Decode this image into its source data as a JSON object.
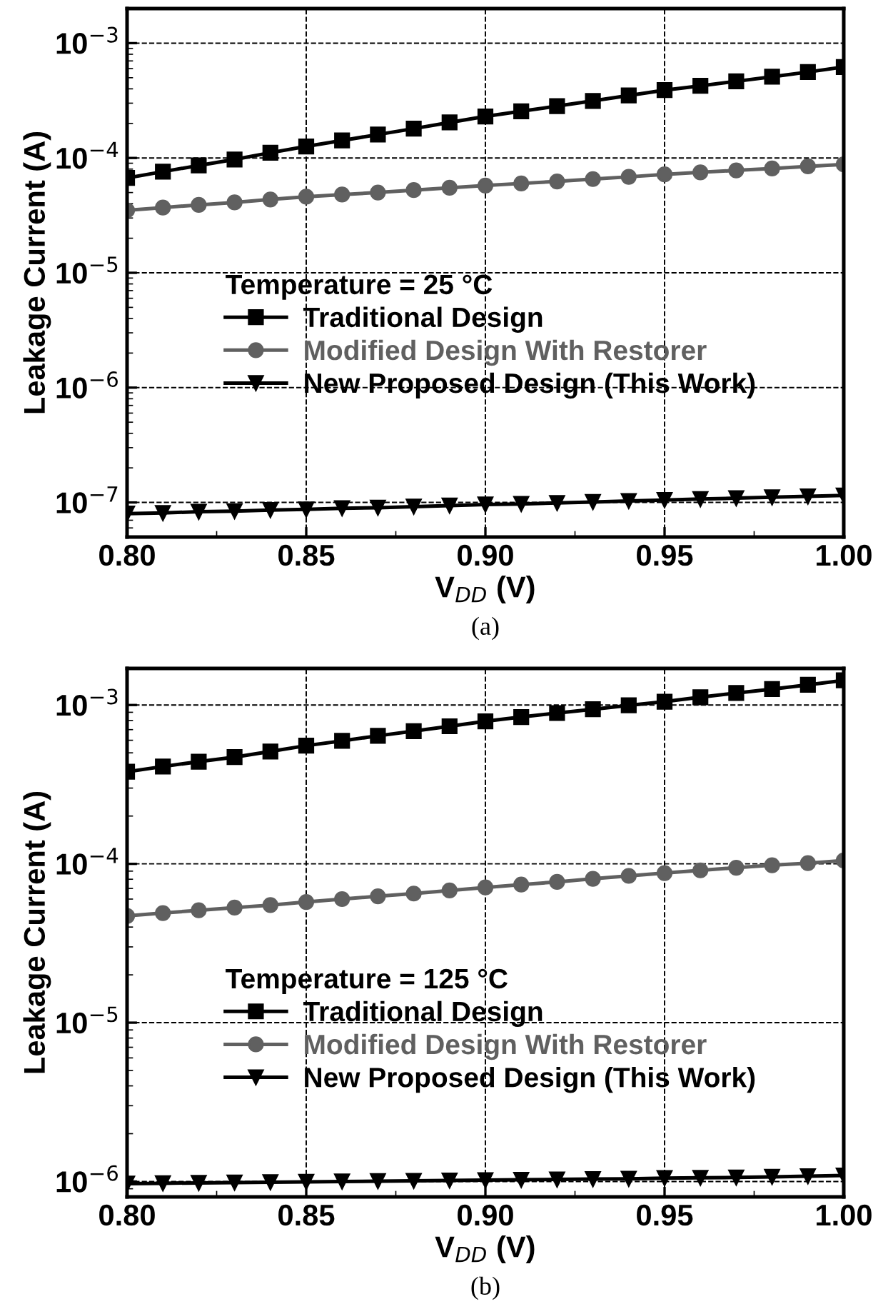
{
  "chart_data": [
    {
      "type": "line",
      "xlabel": "V$_{DD}$ (V)",
      "ylabel": "Leakage Current (A)",
      "legend_title": "Temperature = 25 °C",
      "annotations": [
        "(a)"
      ],
      "x": [
        0.8,
        0.81,
        0.82,
        0.83,
        0.84,
        0.85,
        0.86,
        0.87,
        0.88,
        0.89,
        0.9,
        0.91,
        0.92,
        0.93,
        0.94,
        0.95,
        0.96,
        0.97,
        0.98,
        0.99,
        1.0
      ],
      "series": [
        {
          "name": "Traditional Design",
          "color": "#000000",
          "marker": "square",
          "values": [
            6.7e-05,
            7.6e-05,
            8.6e-05,
            9.7e-05,
            0.000111,
            0.000126,
            0.000142,
            0.00016,
            0.00018,
            0.000204,
            0.00023,
            0.000255,
            0.000283,
            0.000314,
            0.00035,
            0.00039,
            0.000425,
            0.000465,
            0.00051,
            0.00056,
            0.00062
          ]
        },
        {
          "name": "Modified Design With Restorer",
          "color": "#606060",
          "marker": "circle",
          "values": [
            3.5e-05,
            3.7e-05,
            3.9e-05,
            4.1e-05,
            4.35e-05,
            4.6e-05,
            4.8e-05,
            5e-05,
            5.25e-05,
            5.5e-05,
            5.75e-05,
            6e-05,
            6.25e-05,
            6.55e-05,
            6.85e-05,
            7.2e-05,
            7.5e-05,
            7.8e-05,
            8.1e-05,
            8.45e-05,
            8.8e-05
          ]
        },
        {
          "name": "New Proposed Design (This Work)",
          "color": "#000000",
          "marker": "triangle",
          "values": [
            8e-08,
            8.1e-08,
            8.3e-08,
            8.4e-08,
            8.6e-08,
            8.7e-08,
            8.9e-08,
            9e-08,
            9.2e-08,
            9.4e-08,
            9.6e-08,
            9.7e-08,
            9.9e-08,
            1.01e-07,
            1.03e-07,
            1.05e-07,
            1.07e-07,
            1.09e-07,
            1.11e-07,
            1.13e-07,
            1.15e-07
          ]
        }
      ],
      "xlim": [
        0.8,
        1.0
      ],
      "xticks": [
        {
          "value": 0.8,
          "label": "0.80"
        },
        {
          "value": 0.85,
          "label": "0.85"
        },
        {
          "value": 0.9,
          "label": "0.90"
        },
        {
          "value": 0.95,
          "label": "0.95"
        },
        {
          "value": 1.0,
          "label": "1.00"
        }
      ],
      "ylim": [
        5e-08,
        0.002
      ],
      "yticks": [
        {
          "value": 1e-07,
          "label": "10$^{−7}$"
        },
        {
          "value": 1e-06,
          "label": "10$^{−6}$"
        },
        {
          "value": 1e-05,
          "label": "10$^{−5}$"
        },
        {
          "value": 0.0001,
          "label": "10$^{−4}$"
        },
        {
          "value": 0.001,
          "label": "10$^{−3}$"
        }
      ],
      "log": "y",
      "grid": true,
      "legend": "center",
      "line_style": "solid"
    },
    {
      "type": "line",
      "xlabel": "V$_{DD}$ (V)",
      "ylabel": "Leakage Current (A)",
      "legend_title": "Temperature = 125 °C",
      "annotations": [
        "(b)"
      ],
      "x": [
        0.8,
        0.81,
        0.82,
        0.83,
        0.84,
        0.85,
        0.86,
        0.87,
        0.88,
        0.89,
        0.9,
        0.91,
        0.92,
        0.93,
        0.94,
        0.95,
        0.96,
        0.97,
        0.98,
        0.99,
        1.0
      ],
      "series": [
        {
          "name": "Traditional Design",
          "color": "#000000",
          "marker": "square",
          "values": [
            0.00038,
            0.00041,
            0.00044,
            0.00047,
            0.00051,
            0.000555,
            0.000595,
            0.00064,
            0.000685,
            0.000735,
            0.00079,
            0.00084,
            0.00089,
            0.00094,
            0.000995,
            0.00105,
            0.00112,
            0.00119,
            0.00126,
            0.00134,
            0.00143
          ]
        },
        {
          "name": "Modified Design With Restorer",
          "color": "#606060",
          "marker": "circle",
          "values": [
            4.7e-05,
            4.9e-05,
            5.1e-05,
            5.3e-05,
            5.5e-05,
            5.75e-05,
            6e-05,
            6.25e-05,
            6.5e-05,
            6.8e-05,
            7.1e-05,
            7.4e-05,
            7.7e-05,
            8.05e-05,
            8.4e-05,
            8.75e-05,
            9.1e-05,
            9.45e-05,
            9.8e-05,
            0.000101,
            0.000105
          ]
        },
        {
          "name": "New Proposed Design (This Work)",
          "color": "#000000",
          "marker": "triangle",
          "values": [
            9.7e-07,
            9.75e-07,
            9.8e-07,
            9.85e-07,
            9.9e-07,
            9.95e-07,
            1e-06,
            1.005e-06,
            1.01e-06,
            1.015e-06,
            1.02e-06,
            1.025e-06,
            1.03e-06,
            1.035e-06,
            1.04e-06,
            1.05e-06,
            1.055e-06,
            1.06e-06,
            1.07e-06,
            1.08e-06,
            1.09e-06
          ]
        }
      ],
      "xlim": [
        0.8,
        1.0
      ],
      "xticks": [
        {
          "value": 0.8,
          "label": "0.80"
        },
        {
          "value": 0.85,
          "label": "0.85"
        },
        {
          "value": 0.9,
          "label": "0.90"
        },
        {
          "value": 0.95,
          "label": "0.95"
        },
        {
          "value": 1.0,
          "label": "1.00"
        }
      ],
      "ylim": [
        8e-07,
        0.0017
      ],
      "yticks": [
        {
          "value": 1e-06,
          "label": "10$^{−6}$"
        },
        {
          "value": 1e-05,
          "label": "10$^{−5}$"
        },
        {
          "value": 0.0001,
          "label": "10$^{−4}$"
        },
        {
          "value": 0.001,
          "label": "10$^{−3}$"
        }
      ],
      "log": "y",
      "grid": true,
      "legend": "center",
      "line_style": "solid"
    }
  ]
}
